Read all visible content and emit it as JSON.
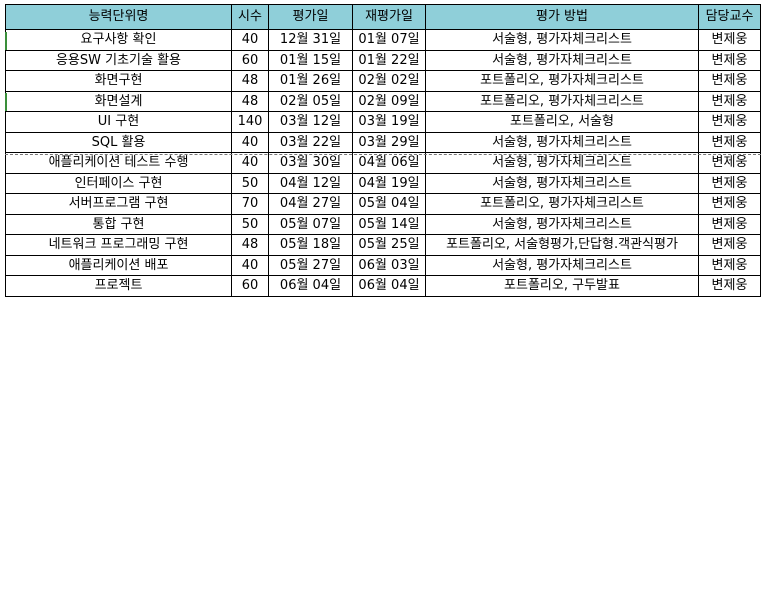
{
  "columns": [
    "능력단위명",
    "시수",
    "평가일",
    "재평가일",
    "평가 방법",
    "담당교수"
  ],
  "rows": [
    {
      "unit": "요구사항 확인",
      "hours": "40",
      "eval": "12월 31일",
      "reeval": "01월 07일",
      "method": "서술형, 평가자체크리스트",
      "prof": "변제웅"
    },
    {
      "unit": "응용SW 기초기술 활용",
      "hours": "60",
      "eval": "01월 15일",
      "reeval": "01월 22일",
      "method": "서술형, 평가자체크리스트",
      "prof": "변제웅"
    },
    {
      "unit": "화면구현",
      "hours": "48",
      "eval": "01월 26일",
      "reeval": "02월 02일",
      "method": "포트폴리오, 평가자체크리스트",
      "prof": "변제웅"
    },
    {
      "unit": "화면설계",
      "hours": "48",
      "eval": "02월 05일",
      "reeval": "02월 09일",
      "method": "포트폴리오, 평가자체크리스트",
      "prof": "변제웅"
    },
    {
      "unit": "UI 구현",
      "hours": "140",
      "eval": "03월 12일",
      "reeval": "03월 19일",
      "method": "포트폴리오, 서술형",
      "prof": "변제웅"
    },
    {
      "unit": "SQL 활용",
      "hours": "40",
      "eval": "03월 22일",
      "reeval": "03월 29일",
      "method": "서술형, 평가자체크리스트",
      "prof": "변제웅"
    },
    {
      "unit": "애플리케이션 테스트 수행",
      "hours": "40",
      "eval": "03월 30일",
      "reeval": "04월 06일",
      "method": "서술형, 평가자체크리스트",
      "prof": "변제웅"
    },
    {
      "unit": "인터페이스 구현",
      "hours": "50",
      "eval": "04월 12일",
      "reeval": "04월 19일",
      "method": "서술형, 평가자체크리스트",
      "prof": "변제웅"
    },
    {
      "unit": "서버프로그램 구현",
      "hours": "70",
      "eval": "04월 27일",
      "reeval": "05월 04일",
      "method": "포트폴리오, 평가자체크리스트",
      "prof": "변제웅"
    },
    {
      "unit": "통합 구현",
      "hours": "50",
      "eval": "05월 07일",
      "reeval": "05월 14일",
      "method": "서술형, 평가자체크리스트",
      "prof": "변제웅"
    },
    {
      "unit": "네트워크 프로그래밍 구현",
      "hours": "48",
      "eval": "05월 18일",
      "reeval": "05월 25일",
      "method": "포트폴리오, 서술형평가,단답형.객관식평가",
      "prof": "변제웅"
    },
    {
      "unit": "애플리케이션 배포",
      "hours": "40",
      "eval": "05월 27일",
      "reeval": "06월 03일",
      "method": "서술형, 평가자체크리스트",
      "prof": "변제웅"
    },
    {
      "unit": "프로젝트",
      "hours": "60",
      "eval": "06월 04일",
      "reeval": "06월 04일",
      "method": "포트폴리오, 구두발표",
      "prof": "변제웅"
    }
  ],
  "colors": {
    "header_bg": "#8fcfd9",
    "border": "#000000",
    "page_break_line": "#777777"
  }
}
